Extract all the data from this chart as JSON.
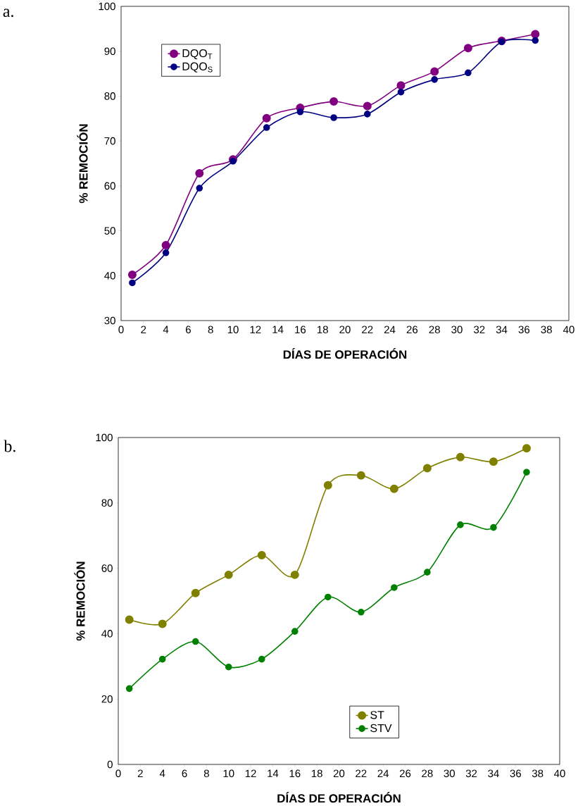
{
  "chart_data": [
    {
      "type": "line",
      "xlabel": "DÍAS DE OPERACIÓN",
      "ylabel": "% REMOCIÓN",
      "annotations": [
        "a."
      ],
      "x": [
        1,
        4,
        7,
        10,
        13,
        16,
        19,
        22,
        25,
        28,
        31,
        34,
        37
      ],
      "xlim": [
        0,
        40
      ],
      "xticks": [
        0,
        2,
        4,
        6,
        8,
        10,
        12,
        14,
        16,
        18,
        20,
        22,
        24,
        26,
        28,
        30,
        32,
        34,
        36,
        38,
        40
      ],
      "ylim": [
        30,
        100
      ],
      "yticks": [
        30,
        40,
        50,
        60,
        70,
        80,
        90,
        100
      ],
      "legend": "top left",
      "marker": "circle",
      "line_style": "solid",
      "series": [
        {
          "name": "DQO$_{T}$",
          "color": "#800080",
          "values": [
            40.2,
            46.8,
            62.8,
            65.9,
            75.1,
            77.4,
            78.8,
            77.8,
            82.4,
            85.5,
            90.7,
            92.3,
            93.8
          ]
        },
        {
          "name": "DQO$_{S}$",
          "color": "#000080",
          "values": [
            38.4,
            45.1,
            59.5,
            65.5,
            73.0,
            76.5,
            75.2,
            76.0,
            80.9,
            83.7,
            85.2,
            92.1,
            92.4
          ]
        }
      ]
    },
    {
      "type": "line",
      "xlabel": "DÍAS DE OPERACIÓN",
      "ylabel": "% REMOCIÓN",
      "annotations": [
        "b."
      ],
      "x": [
        1,
        4,
        7,
        10,
        13,
        16,
        19,
        22,
        25,
        28,
        31,
        34,
        37
      ],
      "xlim": [
        0,
        40
      ],
      "xticks": [
        0,
        2,
        4,
        6,
        8,
        10,
        12,
        14,
        16,
        18,
        20,
        22,
        24,
        26,
        28,
        30,
        32,
        34,
        36,
        38,
        40
      ],
      "ylim": [
        0,
        100
      ],
      "yticks": [
        0,
        20,
        40,
        60,
        80,
        100
      ],
      "legend": "bottom",
      "marker": "circle",
      "line_style": "solid",
      "series": [
        {
          "name": "ST",
          "color": "#808000",
          "values": [
            44.3,
            43.0,
            52.4,
            58.0,
            64.0,
            58.0,
            85.4,
            88.4,
            84.3,
            90.6,
            94.0,
            92.6,
            96.7
          ]
        },
        {
          "name": "STV",
          "color": "#008000",
          "values": [
            23.2,
            32.2,
            37.6,
            29.8,
            32.2,
            40.7,
            51.2,
            46.6,
            54.1,
            58.8,
            73.3,
            72.5,
            89.4
          ]
        }
      ]
    }
  ]
}
